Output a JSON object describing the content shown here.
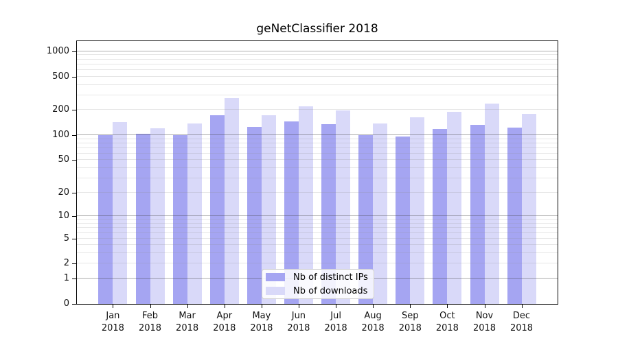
{
  "chart_data": {
    "type": "bar",
    "title": "geNetClassifier 2018",
    "categories": [
      "Jan",
      "Feb",
      "Mar",
      "Apr",
      "May",
      "Jun",
      "Jul",
      "Aug",
      "Sep",
      "Oct",
      "Nov",
      "Dec"
    ],
    "x_year_label": "2018",
    "series": [
      {
        "name": "Nb of distinct IPs",
        "color": "#a5a5f2",
        "values": [
          101,
          104,
          100,
          172,
          126,
          145,
          136,
          100,
          97,
          119,
          134,
          124
        ]
      },
      {
        "name": "Nb of downloads",
        "color": "#d9d9f9",
        "values": [
          143,
          122,
          138,
          279,
          172,
          222,
          197,
          139,
          164,
          191,
          238,
          181
        ]
      }
    ],
    "yscale": "log1p",
    "ylim": [
      0,
      1318
    ],
    "yticks": [
      0,
      1,
      2,
      5,
      10,
      20,
      50,
      100,
      200,
      500,
      1000
    ],
    "grid": {
      "orientation": "horizontal",
      "major_values": [
        1,
        10,
        100,
        1000
      ],
      "major_color": "#b3b3b3",
      "minor_color": "#e7e7e7"
    },
    "legend_position": "inside-bottom-center",
    "xlabel": "",
    "ylabel": ""
  }
}
